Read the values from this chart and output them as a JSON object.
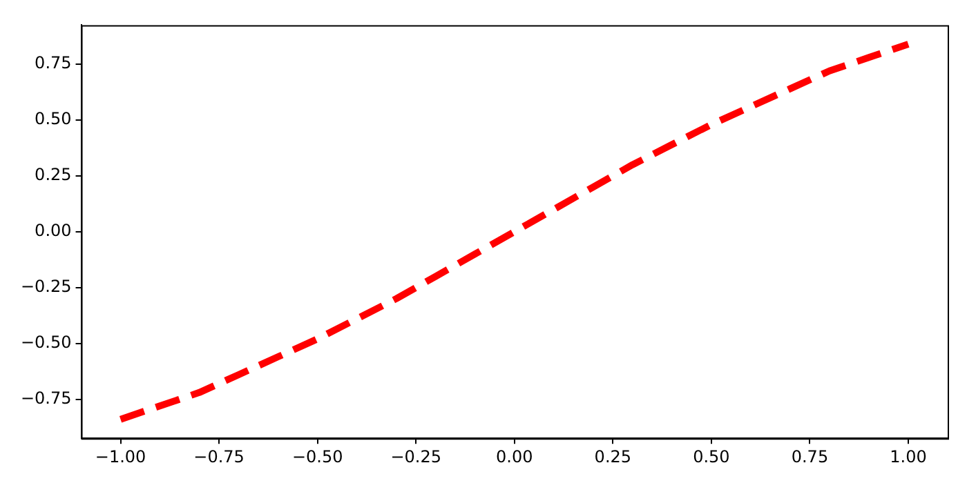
{
  "chart_data": {
    "type": "line",
    "x": [
      -1.0,
      -0.9,
      -0.8,
      -0.7,
      -0.6,
      -0.5,
      -0.4,
      -0.3,
      -0.2,
      -0.1,
      0.0,
      0.1,
      0.2,
      0.3,
      0.4,
      0.5,
      0.6,
      0.7,
      0.8,
      0.9,
      1.0
    ],
    "series": [
      {
        "color": "#ff0000",
        "values": [
          -0.84,
          -0.78,
          -0.72,
          -0.64,
          -0.56,
          -0.48,
          -0.39,
          -0.3,
          -0.2,
          -0.1,
          0.0,
          0.1,
          0.2,
          0.3,
          0.39,
          0.48,
          0.56,
          0.64,
          0.72,
          0.78,
          0.84
        ]
      }
    ],
    "xlim": [
      -1.1,
      1.1
    ],
    "ylim": [
      -0.925,
      0.925
    ],
    "xticks": [
      {
        "value": -1.0,
        "label": "−1.00"
      },
      {
        "value": -0.75,
        "label": "−0.75"
      },
      {
        "value": -0.5,
        "label": "−0.50"
      },
      {
        "value": -0.25,
        "label": "−0.25"
      },
      {
        "value": 0,
        "label": "0.00"
      },
      {
        "value": 0.25,
        "label": "0.25"
      },
      {
        "value": 0.5,
        "label": "0.50"
      },
      {
        "value": 0.75,
        "label": "0.75"
      },
      {
        "value": 1.0,
        "label": "1.00"
      }
    ],
    "yticks": [
      {
        "value": -0.75,
        "label": "−0.75"
      },
      {
        "value": -0.5,
        "label": "−0.50"
      },
      {
        "value": -0.25,
        "label": "−0.25"
      },
      {
        "value": 0,
        "label": "0.00"
      },
      {
        "value": 0.25,
        "label": "0.25"
      },
      {
        "value": 0.5,
        "label": "0.50"
      },
      {
        "value": 0.75,
        "label": "0.75"
      }
    ],
    "grid": false,
    "legend": false,
    "marker": "none",
    "line_style": "dashed"
  }
}
